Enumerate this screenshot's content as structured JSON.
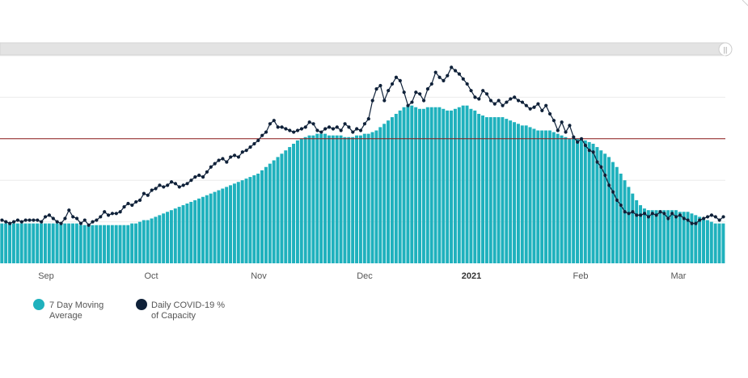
{
  "chart_data": {
    "type": "bar",
    "title": "",
    "xlabel": "",
    "ylabel": "",
    "x_tick_labels": [
      "Sep",
      "Oct",
      "Nov",
      "Dec",
      "2021",
      "Feb",
      "Mar"
    ],
    "ylim": [
      0,
      125
    ],
    "grid": true,
    "reference_line_y": 75,
    "legend_position": "bottom-left",
    "colors": {
      "moving_average": "#1fb1bd",
      "daily": "#0f2139",
      "reference_line": "#8b1a1a",
      "grid": "#ececec",
      "scrollbar": "#e3e3e3"
    },
    "series": [
      {
        "name": "7 Day Moving Average",
        "kind": "bar",
        "values": [
          24,
          24,
          24,
          24,
          24,
          24,
          24,
          24,
          24,
          24,
          24,
          24,
          24,
          24,
          24,
          24,
          24,
          24,
          24,
          24,
          23,
          23,
          23,
          23,
          23,
          23,
          23,
          23,
          23,
          23,
          23,
          23,
          23,
          24,
          24,
          25,
          26,
          26,
          27,
          28,
          29,
          30,
          31,
          32,
          33,
          34,
          35,
          36,
          37,
          38,
          39,
          40,
          41,
          42,
          43,
          44,
          45,
          46,
          47,
          48,
          49,
          50,
          51,
          52,
          53,
          54,
          56,
          58,
          60,
          62,
          64,
          66,
          68,
          70,
          72,
          74,
          75,
          76,
          77,
          77,
          78,
          78,
          78,
          77,
          77,
          77,
          77,
          76,
          76,
          76,
          77,
          77,
          78,
          78,
          79,
          80,
          82,
          84,
          86,
          88,
          90,
          92,
          94,
          95,
          95,
          94,
          93,
          93,
          94,
          94,
          94,
          94,
          93,
          92,
          92,
          93,
          94,
          95,
          95,
          93,
          92,
          90,
          89,
          88,
          88,
          88,
          88,
          88,
          87,
          86,
          85,
          84,
          83,
          83,
          82,
          81,
          80,
          80,
          80,
          80,
          79,
          78,
          77,
          76,
          75,
          75,
          75,
          75,
          74,
          73,
          72,
          70,
          68,
          66,
          64,
          61,
          58,
          54,
          50,
          46,
          42,
          38,
          35,
          33,
          32,
          32,
          32,
          32,
          32,
          32,
          32,
          32,
          31,
          31,
          31,
          30,
          29,
          28,
          27,
          26,
          25,
          24,
          24,
          24
        ]
      },
      {
        "name": "Daily COVID-19 % of Capacity",
        "kind": "line",
        "values": [
          26,
          25,
          24,
          25,
          26,
          25,
          26,
          26,
          26,
          26,
          25,
          28,
          29,
          27,
          25,
          24,
          27,
          32,
          28,
          27,
          24,
          26,
          23,
          25,
          26,
          28,
          31,
          29,
          30,
          30,
          31,
          34,
          36,
          35,
          37,
          38,
          42,
          41,
          44,
          45,
          47,
          46,
          47,
          49,
          48,
          46,
          47,
          48,
          50,
          52,
          53,
          52,
          55,
          58,
          60,
          62,
          63,
          61,
          64,
          65,
          64,
          67,
          68,
          70,
          72,
          74,
          77,
          79,
          84,
          86,
          82,
          82,
          81,
          80,
          79,
          80,
          81,
          82,
          85,
          84,
          80,
          79,
          81,
          82,
          81,
          82,
          80,
          84,
          82,
          79,
          81,
          80,
          84,
          87,
          98,
          105,
          107,
          98,
          104,
          108,
          112,
          110,
          103,
          95,
          97,
          103,
          102,
          98,
          105,
          108,
          115,
          112,
          110,
          113,
          118,
          116,
          114,
          111,
          108,
          104,
          100,
          99,
          104,
          102,
          98,
          96,
          98,
          95,
          97,
          99,
          100,
          98,
          97,
          95,
          93,
          94,
          96,
          92,
          95,
          90,
          86,
          80,
          85,
          79,
          83,
          76,
          73,
          75,
          71,
          68,
          67,
          61,
          58,
          53,
          47,
          43,
          38,
          35,
          31,
          30,
          31,
          29,
          29,
          30,
          28,
          30,
          29,
          31,
          30,
          27,
          30,
          28,
          29,
          27,
          26,
          24,
          24,
          26,
          27,
          28,
          29,
          28,
          26,
          28
        ]
      }
    ]
  },
  "legend": {
    "items": [
      {
        "label_line1": "7 Day Moving",
        "label_line2": "Average",
        "color": "#1fb1bd"
      },
      {
        "label_line1": "Daily COVID-19 %",
        "label_line2": "of Capacity",
        "color": "#0f2139"
      }
    ]
  },
  "scrollbar": {
    "handle_glyph": "||"
  }
}
